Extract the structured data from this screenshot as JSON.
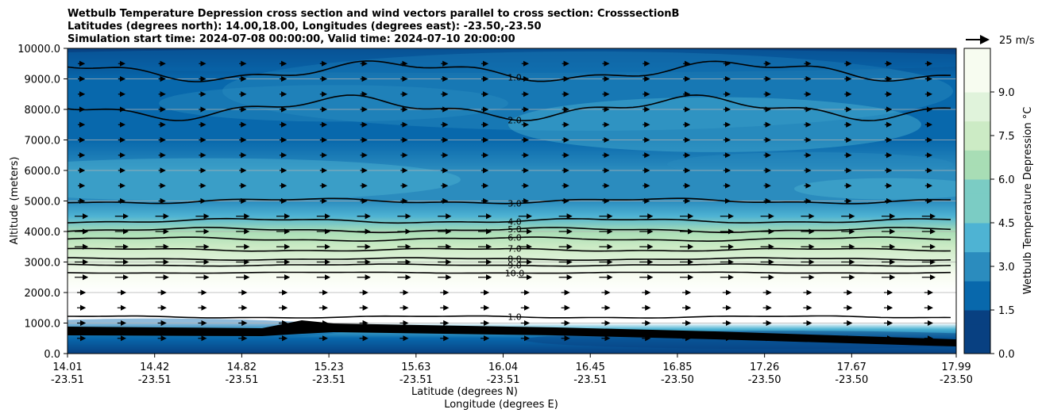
{
  "chart_data": {
    "type": "heatmap",
    "title": [
      "Wetbulb Temperature Depression cross section and wind vectors parallel to cross section: CrosssectionB",
      "Latitudes (degrees north): 14.00,18.00, Longitudes (degrees east): -23.50,-23.50",
      "Simulation start time: 2024-07-08 00:00:00, Valid time: 2024-07-10 20:00:00"
    ],
    "ylabel": "Altitude (meters)",
    "xlabel": "Latitude (degrees N)",
    "xlabel2": "Longitude (degrees E)",
    "ylim": [
      0,
      10000
    ],
    "yticks": [
      "0.0",
      "1000.0",
      "2000.0",
      "3000.0",
      "4000.0",
      "5000.0",
      "6000.0",
      "7000.0",
      "8000.0",
      "9000.0",
      "10000.0"
    ],
    "xticks_lat": [
      "14.01",
      "14.42",
      "14.82",
      "15.23",
      "15.63",
      "16.04",
      "16.45",
      "16.85",
      "17.26",
      "17.67",
      "17.99"
    ],
    "xticks_lon": [
      "-23.51",
      "-23.51",
      "-23.51",
      "-23.51",
      "-23.51",
      "-23.51",
      "-23.51",
      "-23.50",
      "-23.50",
      "-23.50",
      "-23.50"
    ],
    "colorbar_label": "Wetbulb Temperature Depression °C",
    "colorbar_range": [
      0,
      10.5
    ],
    "colorbar_ticks": [
      "0.0",
      "1.5",
      "3.0",
      "4.5",
      "6.0",
      "7.5",
      "9.0"
    ],
    "grid": "horizontal",
    "quiver_key": "25 m/s",
    "contour_labels": [
      "1.0",
      "2.0",
      "3.0",
      "4.0",
      "5.0",
      "6.0",
      "7.0",
      "8.0",
      "9.0",
      "10.0"
    ],
    "profile": {
      "altitude_m": [
        0,
        500,
        800,
        1000,
        2000,
        2600,
        3000,
        3500,
        4000,
        4500,
        5000,
        6000,
        7000,
        8000,
        9000,
        10000
      ],
      "depression_c": [
        0.5,
        1.5,
        4.0,
        12.0,
        12.0,
        10.0,
        9.0,
        7.5,
        6.0,
        4.2,
        3.0,
        2.8,
        2.2,
        1.9,
        1.2,
        0.6
      ]
    }
  },
  "colors": {
    "colormap": [
      "#084081",
      "#0868ac",
      "#2b8cbe",
      "#4eb3d3",
      "#7bccc4",
      "#a8ddb5",
      "#ccebc5",
      "#e0f3db",
      "#f7fcf0"
    ],
    "dry_layer": "#ffffff",
    "contour": "#000000",
    "grid": "#b0b0b0"
  }
}
